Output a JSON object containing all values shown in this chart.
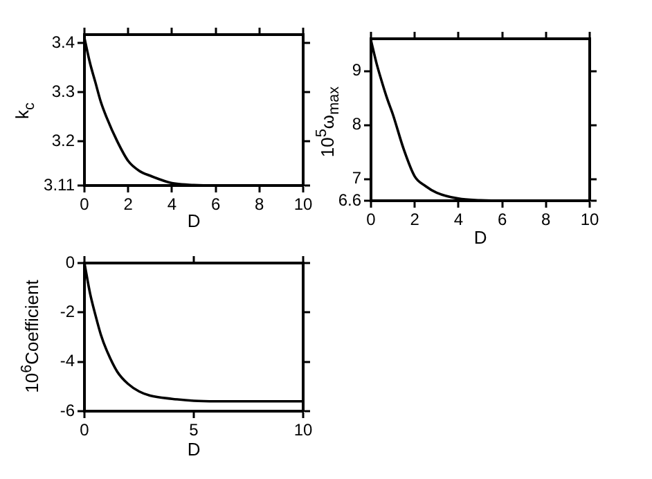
{
  "chart_data": [
    {
      "type": "line",
      "xlabel": "D",
      "ylabel": "k$_{c}$",
      "x": [
        0,
        0.25,
        0.5,
        0.75,
        1,
        1.5,
        2,
        2.5,
        3,
        4,
        5,
        6,
        8,
        10
      ],
      "xlim": [
        0,
        10
      ],
      "xticks": [
        0,
        2,
        4,
        6,
        8,
        10
      ],
      "ylim": [
        3.11,
        3.417
      ],
      "yticks": [
        3.11,
        3.2,
        3.3,
        3.4
      ],
      "grid": false,
      "marker": "none",
      "line_style": "solid",
      "series": [
        {
          "color": "#000000",
          "values": [
            3.41,
            3.36,
            3.32,
            3.28,
            3.25,
            3.2,
            3.16,
            3.14,
            3.13,
            3.115,
            3.111,
            3.11,
            3.11,
            3.11
          ]
        }
      ]
    },
    {
      "type": "line",
      "xlabel": "D",
      "ylabel": "10$^{5}$ω$_{max}$",
      "x": [
        0,
        0.25,
        0.5,
        0.75,
        1,
        1.5,
        2,
        2.5,
        3,
        4,
        5,
        6,
        8,
        10
      ],
      "xlim": [
        0,
        10
      ],
      "xticks": [
        0,
        2,
        4,
        6,
        8,
        10
      ],
      "ylim": [
        6.6,
        9.6
      ],
      "yticks": [
        6.6,
        7,
        8,
        9
      ],
      "grid": false,
      "marker": "none",
      "line_style": "solid",
      "series": [
        {
          "color": "#000000",
          "values": [
            9.57,
            9.15,
            8.8,
            8.48,
            8.2,
            7.55,
            7.05,
            6.87,
            6.75,
            6.64,
            6.61,
            6.6,
            6.6,
            6.6
          ]
        }
      ]
    },
    {
      "type": "line",
      "xlabel": "D",
      "ylabel": "10$^{6}$Coefficient",
      "x": [
        0,
        0.25,
        0.5,
        0.75,
        1,
        1.5,
        2,
        2.5,
        3,
        4,
        5,
        6,
        8,
        10
      ],
      "xlim": [
        0,
        10
      ],
      "xticks": [
        0,
        5,
        10
      ],
      "ylim": [
        -6,
        0
      ],
      "yticks": [
        -6,
        -4,
        -2,
        0
      ],
      "grid": false,
      "marker": "none",
      "line_style": "solid",
      "series": [
        {
          "color": "#000000",
          "values": [
            0,
            -1.2,
            -2.1,
            -2.9,
            -3.5,
            -4.4,
            -4.9,
            -5.2,
            -5.37,
            -5.5,
            -5.58,
            -5.6,
            -5.6,
            -5.6
          ]
        }
      ]
    }
  ]
}
